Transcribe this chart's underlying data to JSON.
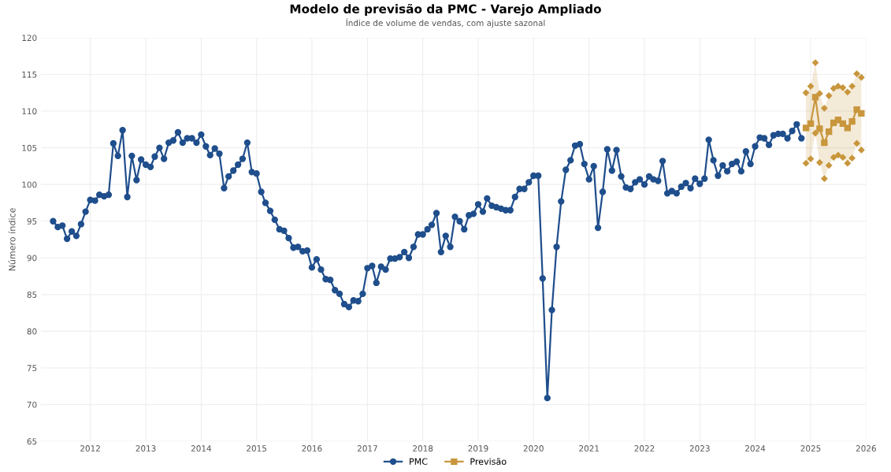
{
  "chart_data": {
    "type": "line",
    "title": "Modelo de previsão da PMC - Varejo Ampliado",
    "subtitle": "Índice de volume de vendas, com ajuste sazonal",
    "ylabel": "Número índice",
    "xlim": [
      "2011-02-10",
      "2026-01-01"
    ],
    "xticks": [
      "2012",
      "2013",
      "2014",
      "2015",
      "2016",
      "2017",
      "2018",
      "2019",
      "2020",
      "2021",
      "2022",
      "2023",
      "2024",
      "2025",
      "2026"
    ],
    "ylim": [
      65,
      120
    ],
    "yticks": [
      65,
      70,
      75,
      80,
      85,
      90,
      95,
      100,
      105,
      110,
      115,
      120
    ],
    "grid": true,
    "legend": "bottom",
    "line_style": "solid",
    "series": [
      {
        "name": "PMC",
        "color": "#1f4e8c",
        "marker": "circle",
        "x": [
          "2011-05",
          "2011-06",
          "2011-07",
          "2011-08",
          "2011-09",
          "2011-10",
          "2011-11",
          "2011-12",
          "2012-01",
          "2012-02",
          "2012-03",
          "2012-04",
          "2012-05",
          "2012-06",
          "2012-07",
          "2012-08",
          "2012-09",
          "2012-10",
          "2012-11",
          "2012-12",
          "2013-01",
          "2013-02",
          "2013-03",
          "2013-04",
          "2013-05",
          "2013-06",
          "2013-07",
          "2013-08",
          "2013-09",
          "2013-10",
          "2013-11",
          "2013-12",
          "2014-01",
          "2014-02",
          "2014-03",
          "2014-04",
          "2014-05",
          "2014-06",
          "2014-07",
          "2014-08",
          "2014-09",
          "2014-10",
          "2014-11",
          "2014-12",
          "2015-01",
          "2015-02",
          "2015-03",
          "2015-04",
          "2015-05",
          "2015-06",
          "2015-07",
          "2015-08",
          "2015-09",
          "2015-10",
          "2015-11",
          "2015-12",
          "2016-01",
          "2016-02",
          "2016-03",
          "2016-04",
          "2016-05",
          "2016-06",
          "2016-07",
          "2016-08",
          "2016-09",
          "2016-10",
          "2016-11",
          "2016-12",
          "2017-01",
          "2017-02",
          "2017-03",
          "2017-04",
          "2017-05",
          "2017-06",
          "2017-07",
          "2017-08",
          "2017-09",
          "2017-10",
          "2017-11",
          "2017-12",
          "2018-01",
          "2018-02",
          "2018-03",
          "2018-04",
          "2018-05",
          "2018-06",
          "2018-07",
          "2018-08",
          "2018-09",
          "2018-10",
          "2018-11",
          "2018-12",
          "2019-01",
          "2019-02",
          "2019-03",
          "2019-04",
          "2019-05",
          "2019-06",
          "2019-07",
          "2019-08",
          "2019-09",
          "2019-10",
          "2019-11",
          "2019-12",
          "2020-01",
          "2020-02",
          "2020-03",
          "2020-04",
          "2020-05",
          "2020-06",
          "2020-07",
          "2020-08",
          "2020-09",
          "2020-10",
          "2020-11",
          "2020-12",
          "2021-01",
          "2021-02",
          "2021-03",
          "2021-04",
          "2021-05",
          "2021-06",
          "2021-07",
          "2021-08",
          "2021-09",
          "2021-10",
          "2021-11",
          "2021-12",
          "2022-01",
          "2022-02",
          "2022-03",
          "2022-04",
          "2022-05",
          "2022-06",
          "2022-07",
          "2022-08",
          "2022-09",
          "2022-10",
          "2022-11",
          "2022-12",
          "2023-01",
          "2023-02",
          "2023-03",
          "2023-04",
          "2023-05",
          "2023-06",
          "2023-07",
          "2023-08",
          "2023-09",
          "2023-10",
          "2023-11",
          "2023-12",
          "2024-01",
          "2024-02",
          "2024-03",
          "2024-04",
          "2024-05",
          "2024-06",
          "2024-07",
          "2024-08",
          "2024-09",
          "2024-10",
          "2024-11"
        ],
        "values": [
          95.0,
          94.2,
          94.4,
          92.6,
          93.6,
          93.0,
          94.6,
          96.3,
          97.9,
          97.8,
          98.6,
          98.4,
          98.6,
          105.6,
          103.9,
          107.4,
          98.3,
          103.9,
          100.6,
          103.4,
          102.7,
          102.4,
          103.8,
          105.0,
          103.5,
          105.7,
          106.0,
          107.1,
          105.7,
          106.3,
          106.3,
          105.7,
          106.8,
          105.2,
          104.0,
          104.9,
          104.2,
          99.5,
          101.1,
          101.9,
          102.7,
          103.5,
          105.7,
          101.7,
          101.5,
          99.0,
          97.5,
          96.4,
          95.2,
          93.9,
          93.7,
          92.7,
          91.4,
          91.5,
          90.9,
          91.0,
          88.7,
          89.8,
          88.4,
          87.1,
          87.0,
          85.6,
          85.1,
          83.7,
          83.3,
          84.2,
          84.1,
          85.1,
          88.6,
          88.9,
          86.6,
          88.8,
          88.4,
          89.9,
          89.9,
          90.1,
          90.8,
          90.0,
          91.5,
          93.2,
          93.2,
          93.9,
          94.5,
          96.1,
          90.8,
          93.0,
          91.5,
          95.6,
          95.0,
          93.9,
          95.8,
          96.0,
          97.3,
          96.3,
          98.1,
          97.1,
          96.9,
          96.7,
          96.5,
          96.5,
          98.3,
          99.4,
          99.4,
          100.3,
          101.2,
          101.2,
          87.2,
          70.9,
          82.9,
          91.5,
          97.7,
          102.0,
          103.3,
          105.3,
          105.5,
          102.8,
          100.7,
          102.5,
          94.1,
          99.0,
          104.8,
          101.9,
          104.7,
          101.1,
          99.6,
          99.4,
          100.3,
          100.7,
          100.0,
          101.1,
          100.7,
          100.5,
          103.2,
          98.8,
          99.1,
          98.8,
          99.7,
          100.2,
          99.5,
          100.8,
          100.1,
          100.8,
          106.1,
          103.3,
          101.2,
          102.6,
          101.8,
          102.8,
          103.1,
          101.8,
          104.5,
          102.8,
          105.2,
          106.4,
          106.3,
          105.4,
          106.7,
          106.9,
          106.9,
          106.3,
          107.3,
          108.2,
          106.3
        ]
      },
      {
        "type": "scatter",
        "color": "#c8963c",
        "marker": "diamond",
        "x": [
          "2024-12",
          "2025-01",
          "2025-02",
          "2025-03",
          "2025-04",
          "2025-05",
          "2025-06",
          "2025-07",
          "2025-08",
          "2025-09",
          "2025-10",
          "2025-11",
          "2025-12"
        ],
        "values": [
          102.9,
          103.5,
          107.0,
          103.0,
          100.8,
          102.6,
          103.7,
          104.0,
          103.7,
          102.9,
          103.6,
          105.6,
          104.7
        ]
      },
      {
        "type": "scatter",
        "color": "#c8963c",
        "marker": "diamond",
        "x": [
          "2024-12",
          "2025-01",
          "2025-02",
          "2025-03",
          "2025-04",
          "2025-05",
          "2025-06",
          "2025-07",
          "2025-08",
          "2025-09",
          "2025-10",
          "2025-11",
          "2025-12"
        ],
        "values": [
          112.5,
          113.4,
          116.6,
          112.4,
          110.4,
          112.1,
          113.1,
          113.4,
          113.2,
          112.6,
          113.4,
          115.1,
          114.6
        ]
      },
      {
        "name": "Previsão",
        "color": "#c8963c",
        "marker": "square",
        "x": [
          "2024-12",
          "2025-01",
          "2025-02",
          "2025-03",
          "2025-04",
          "2025-05",
          "2025-06",
          "2025-07",
          "2025-08",
          "2025-09",
          "2025-10",
          "2025-11",
          "2025-12"
        ],
        "values": [
          107.7,
          108.3,
          111.9,
          107.6,
          105.7,
          107.2,
          108.4,
          108.8,
          108.3,
          107.7,
          108.6,
          110.2,
          109.7
        ],
        "lower": [
          102.9,
          103.5,
          107.0,
          103.0,
          100.8,
          102.6,
          103.7,
          104.0,
          103.7,
          102.9,
          103.6,
          105.6,
          104.7
        ],
        "upper": [
          112.5,
          113.4,
          116.6,
          112.4,
          110.4,
          112.1,
          113.1,
          113.4,
          113.2,
          112.6,
          113.4,
          115.1,
          114.6
        ]
      }
    ]
  }
}
